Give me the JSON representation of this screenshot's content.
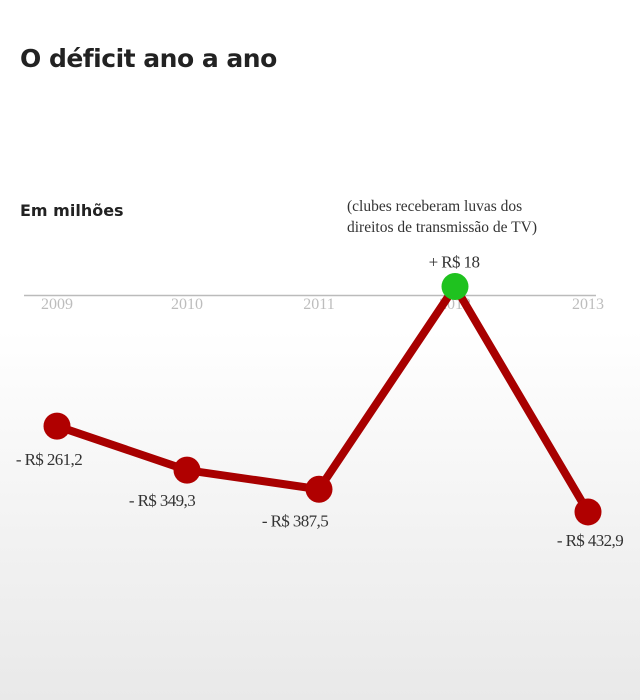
{
  "header": {
    "title": "O déficit ano a ano",
    "subtitle": "Em milhões"
  },
  "annotation": {
    "line1": "(clubes receberam luvas dos",
    "line2": "direitos de transmissão de TV)"
  },
  "colors": {
    "line": "#a80000",
    "negative_point": "#b00000",
    "positive_point": "#1fc21f",
    "axis": "#bbbbbb"
  },
  "chart_data": {
    "type": "line",
    "title": "O déficit ano a ano",
    "ylabel": "Em milhões",
    "x": [
      "2009",
      "2010",
      "2011",
      "2012",
      "2013"
    ],
    "values": [
      -261.2,
      -349.3,
      -387.5,
      18,
      -432.9
    ],
    "data_labels": [
      "- R$ 261,2",
      "- R$ 349,3",
      "- R$ 387,5",
      "+ R$ 18",
      "- R$ 432,9"
    ],
    "annotation": "(clubes receberam luvas dos direitos de transmissão de TV)",
    "grid": false,
    "legend": "none"
  }
}
